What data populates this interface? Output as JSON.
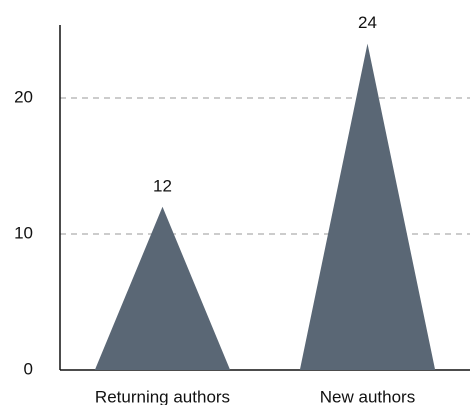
{
  "chart_data": {
    "type": "bar",
    "bar_shape": "triangle",
    "categories": [
      "Returning authors",
      "New authors"
    ],
    "values": [
      12,
      24
    ],
    "color": "#5a6775",
    "ylim": [
      0,
      25
    ],
    "yticks": [
      0,
      10,
      20
    ],
    "grid": true
  }
}
